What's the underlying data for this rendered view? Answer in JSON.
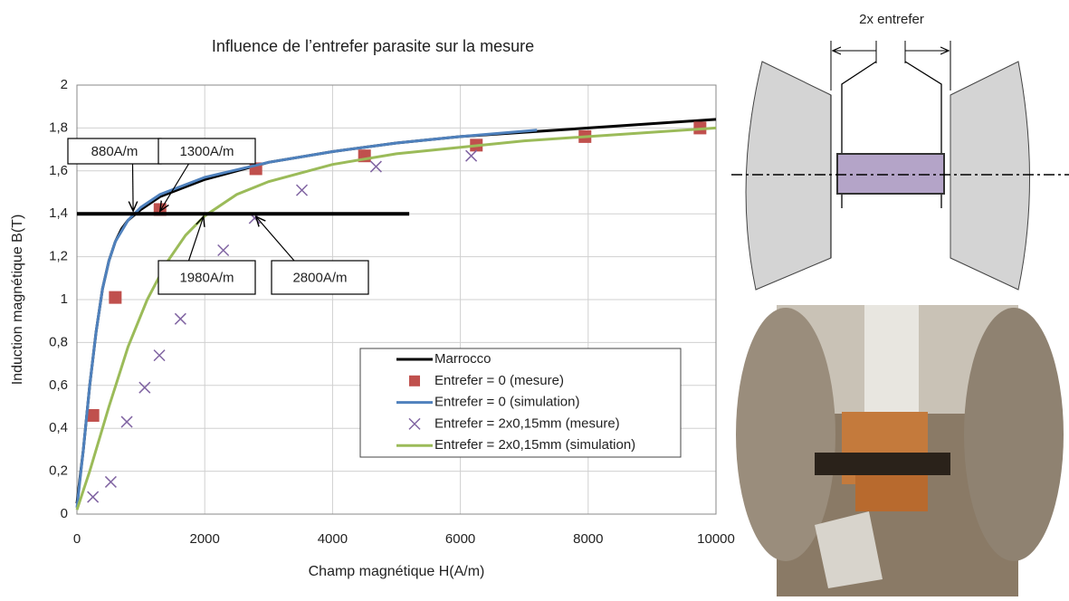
{
  "chart_data": {
    "type": "line",
    "title": "Influence de l’entrefer parasite sur la mesure",
    "x_label": "Champ magnétique H(A/m)",
    "y_label": "Induction magnétique B(T)",
    "xlim": [
      0,
      10000
    ],
    "ylim": [
      0,
      2
    ],
    "xticks": [
      0,
      2000,
      4000,
      6000,
      8000,
      10000
    ],
    "yticks": [
      0,
      {
        "value": 0.2,
        "label": "0,2"
      },
      {
        "value": 0.4,
        "label": "0,4"
      },
      {
        "value": 0.6,
        "label": "0,6"
      },
      {
        "value": 0.8,
        "label": "0,8"
      },
      1,
      {
        "value": 1.2,
        "label": "1,2"
      },
      {
        "value": 1.4,
        "label": "1,4"
      },
      {
        "value": 1.6,
        "label": "1,6"
      },
      {
        "value": 1.8,
        "label": "1,8"
      },
      2
    ],
    "grid": true,
    "series": [
      {
        "name": "Marrocco",
        "color": "#000000",
        "marker": "none",
        "x": [
          0,
          100,
          200,
          300,
          400,
          500,
          600,
          700,
          800,
          1000,
          1300,
          2000,
          3000,
          4000,
          5000,
          6000,
          7000,
          8000,
          9000,
          10000
        ],
        "values": [
          0.05,
          0.3,
          0.6,
          0.85,
          1.05,
          1.18,
          1.27,
          1.33,
          1.37,
          1.42,
          1.48,
          1.56,
          1.64,
          1.69,
          1.73,
          1.76,
          1.78,
          1.8,
          1.82,
          1.84
        ]
      },
      {
        "name": "Entrefer = 0 (mesure)",
        "color": "#c0504d",
        "marker": "square",
        "x": [
          250,
          600,
          1300,
          2800,
          4500,
          6250,
          7950,
          9750
        ],
        "values": [
          0.46,
          1.01,
          1.42,
          1.61,
          1.67,
          1.72,
          1.76,
          1.8
        ]
      },
      {
        "name": "Entrefer = 0 (simulation)",
        "color": "#4f81bd",
        "marker": "none",
        "x": [
          0,
          100,
          200,
          300,
          400,
          500,
          600,
          800,
          1000,
          1300,
          2000,
          3000,
          4000,
          5000,
          6000,
          7200
        ],
        "values": [
          0.03,
          0.3,
          0.6,
          0.85,
          1.05,
          1.18,
          1.27,
          1.37,
          1.43,
          1.49,
          1.57,
          1.64,
          1.69,
          1.73,
          1.76,
          1.79
        ]
      },
      {
        "name": "Entrefer = 2x0,15mm (mesure)",
        "color": "#8064a2",
        "marker": "x",
        "x": [
          250,
          530,
          780,
          1060,
          1290,
          1620,
          1920,
          2290,
          2780,
          3520,
          4680,
          6170
        ],
        "values": [
          0.08,
          0.15,
          0.43,
          0.59,
          0.74,
          0.91,
          1.06,
          1.23,
          1.38,
          1.51,
          1.62,
          1.67
        ]
      },
      {
        "name": "Entrefer = 2x0,15mm (simulation)",
        "color": "#9bbb59",
        "marker": "none",
        "x": [
          0,
          200,
          500,
          800,
          1100,
          1400,
          1700,
          2000,
          2500,
          3000,
          4000,
          5000,
          6000,
          7000,
          8000,
          9000,
          10000
        ],
        "values": [
          0.02,
          0.2,
          0.5,
          0.78,
          1.0,
          1.17,
          1.3,
          1.39,
          1.49,
          1.55,
          1.63,
          1.68,
          1.71,
          1.74,
          1.76,
          1.78,
          1.8
        ]
      }
    ],
    "hline": {
      "x": [
        0,
        5200
      ],
      "values": [
        1.4,
        1.4
      ],
      "color": "#000000"
    },
    "annotations": [
      {
        "text": "880A/m",
        "x": 880,
        "y": 1.4
      },
      {
        "text": "1300A/m",
        "x": 1300,
        "y": 1.4
      },
      {
        "text": "1980A/m",
        "x": 1980,
        "y": 1.4
      },
      {
        "text": "2800A/m",
        "x": 2800,
        "y": 1.4
      }
    ]
  },
  "diagram": {
    "label": "2x entrefer"
  }
}
